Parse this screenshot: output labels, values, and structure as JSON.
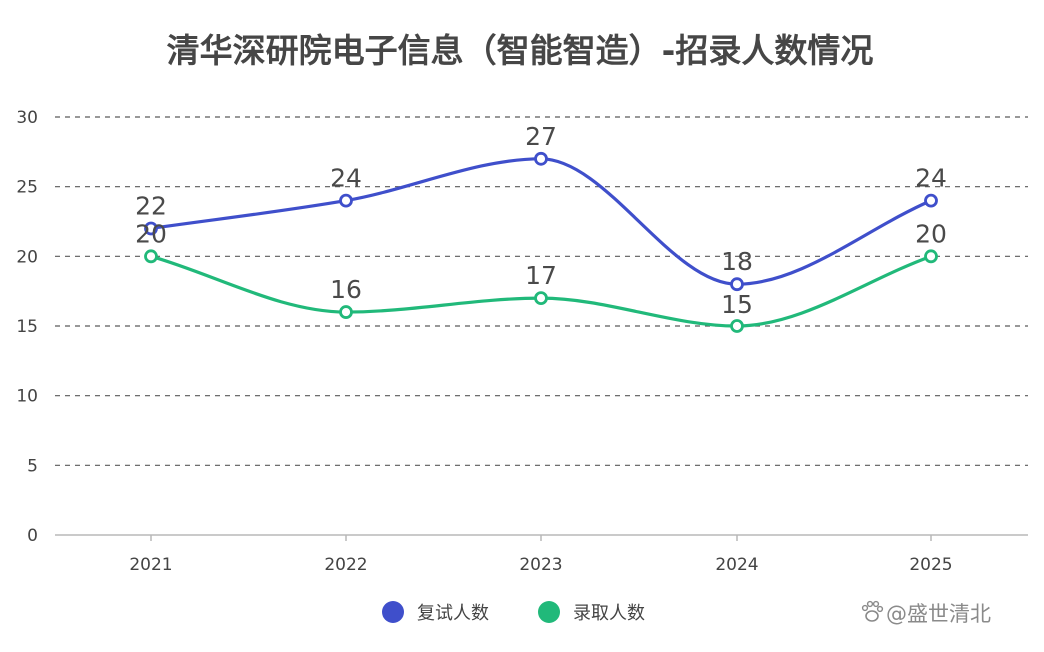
{
  "chart_data": {
    "type": "line",
    "title": "清华深研院电子信息（智能智造）-招录人数情况",
    "categories": [
      "2021",
      "2022",
      "2023",
      "2024",
      "2025"
    ],
    "series": [
      {
        "name": "复试人数",
        "values": [
          22,
          24,
          27,
          18,
          24
        ],
        "color": "#3f4fcb"
      },
      {
        "name": "录取人数",
        "values": [
          20,
          16,
          17,
          15,
          20
        ],
        "color": "#21b97a"
      }
    ],
    "ylim": [
      0,
      30
    ],
    "yticks": [
      0,
      5,
      10,
      15,
      20,
      25,
      30
    ],
    "smooth": true,
    "grid": "dashed-horizontal",
    "legend": "bottom-center"
  },
  "watermark": {
    "text": "@盛世清北",
    "icon": "paw-icon"
  }
}
